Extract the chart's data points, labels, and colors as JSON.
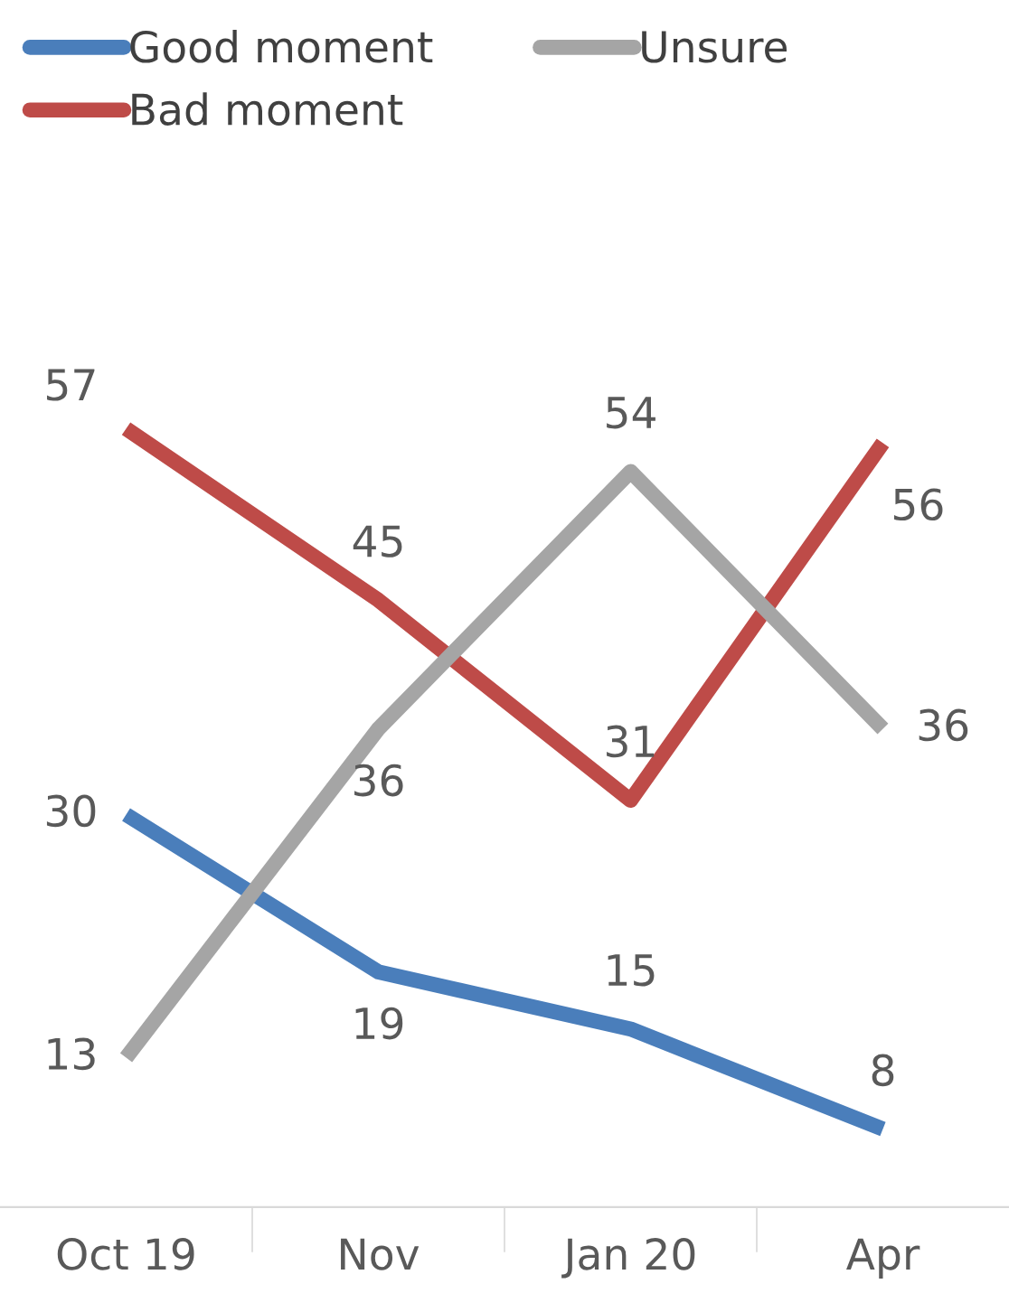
{
  "chart_data": {
    "type": "line",
    "categories": [
      "Oct 19",
      "Nov",
      "Jan 20",
      "Apr"
    ],
    "series": [
      {
        "name": "Good moment",
        "color": "#4a7ebb",
        "values": [
          30,
          19,
          15,
          8
        ]
      },
      {
        "name": "Bad moment",
        "color": "#be4b48",
        "values": [
          57,
          45,
          31,
          56
        ]
      },
      {
        "name": "Unsure",
        "color": "#a5a5a5",
        "values": [
          13,
          36,
          54,
          36
        ]
      }
    ],
    "data_labels": true,
    "legend": "top",
    "grid": false,
    "marker": "none",
    "line_style": "solid"
  }
}
